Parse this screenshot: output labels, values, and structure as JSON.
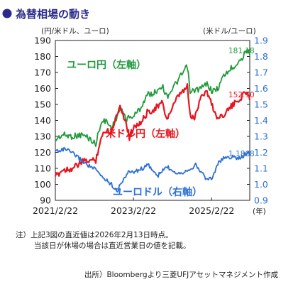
{
  "title": "為替相場の動き",
  "colors": {
    "title": "#2a2a8c",
    "eur_jpy": "#1f9a3a",
    "usd_jpy": "#e8141e",
    "eur_usd": "#2b6fd6",
    "axis": "#222222"
  },
  "left_axis_unit": "(円/米ドル、ユーロ)",
  "right_axis_unit": "(米ドル/ユーロ)",
  "x_axis_unit": "(年)",
  "note_line1": "注）上記3図の直近値は2026年2月13日時点。",
  "note_line2": "当該日が休場の場合は直近営業日の値を記載。",
  "source": "出所）Bloombergより三菱UFJアセットマネジメント作成",
  "chart_data": {
    "type": "line",
    "title": "為替相場の動き",
    "x_tick_labels": [
      "2021/2/22",
      "2023/2/22",
      "2025/2/22"
    ],
    "x_range": [
      "2021-02-22",
      "2026-02-13"
    ],
    "left_axis": {
      "unit": "(円/米ドル、ユーロ)",
      "range": [
        90,
        190
      ],
      "ticks": [
        90,
        100,
        110,
        120,
        130,
        140,
        150,
        160,
        170,
        180,
        190
      ]
    },
    "right_axis": {
      "unit": "(米ドル/ユーロ)",
      "range": [
        0.9,
        1.9
      ],
      "ticks": [
        "0.9",
        "1.0",
        "1.1",
        "1.2",
        "1.3",
        "1.4",
        "1.5",
        "1.6",
        "1.7",
        "1.8",
        "1.9"
      ]
    },
    "grid": false,
    "series": [
      {
        "name": "ユーロ円（左軸）",
        "axis": "left",
        "last_value_label": "181.18",
        "x": [
          "2021-02-22",
          "2021-05-01",
          "2021-08-01",
          "2021-11-01",
          "2022-01-01",
          "2022-03-07",
          "2022-04-20",
          "2022-06-10",
          "2022-08-01",
          "2022-10-20",
          "2022-12-20",
          "2023-03-01",
          "2023-05-01",
          "2023-07-01",
          "2023-09-01",
          "2023-11-15",
          "2024-01-01",
          "2024-04-15",
          "2024-07-10",
          "2024-08-05",
          "2024-09-15",
          "2024-11-15",
          "2025-01-10",
          "2025-03-01",
          "2025-04-20",
          "2025-06-15",
          "2025-08-15",
          "2025-10-20",
          "2025-12-15",
          "2026-01-20",
          "2026-02-13"
        ],
        "values": [
          128,
          131,
          130,
          131,
          129,
          125,
          138,
          140,
          135,
          147,
          141,
          143,
          148,
          156,
          157,
          162,
          155,
          165,
          174,
          157,
          159,
          160,
          163,
          158,
          160,
          168,
          172,
          176,
          180,
          185,
          181.18
        ]
      },
      {
        "name": "米ドル円（左軸）",
        "axis": "left",
        "last_value_label": "152.70",
        "x": [
          "2021-02-22",
          "2021-05-01",
          "2021-08-01",
          "2021-11-01",
          "2022-01-01",
          "2022-03-07",
          "2022-04-20",
          "2022-06-10",
          "2022-08-01",
          "2022-10-20",
          "2022-12-20",
          "2023-01-15",
          "2023-03-01",
          "2023-05-01",
          "2023-07-01",
          "2023-09-01",
          "2023-11-15",
          "2024-01-01",
          "2024-04-15",
          "2024-07-10",
          "2024-08-05",
          "2024-09-15",
          "2024-11-15",
          "2025-01-10",
          "2025-03-01",
          "2025-04-20",
          "2025-06-15",
          "2025-08-15",
          "2025-10-20",
          "2025-12-15",
          "2026-01-20",
          "2026-02-13"
        ],
        "values": [
          105,
          109,
          110,
          114,
          115,
          115,
          128,
          134,
          133,
          150,
          137,
          129,
          137,
          138,
          145,
          147,
          151,
          141,
          155,
          161,
          143,
          141,
          156,
          158,
          149,
          141,
          144,
          148,
          152,
          156,
          158,
          152.7
        ]
      },
      {
        "name": "ユーロドル（右軸）",
        "axis": "right",
        "last_value_label": "1.1868",
        "x": [
          "2021-02-22",
          "2021-06-01",
          "2021-09-01",
          "2021-12-01",
          "2022-03-07",
          "2022-05-01",
          "2022-07-15",
          "2022-09-27",
          "2022-11-15",
          "2023-01-15",
          "2023-03-15",
          "2023-07-15",
          "2023-10-03",
          "2023-12-28",
          "2024-04-15",
          "2024-06-15",
          "2024-09-25",
          "2025-01-13",
          "2025-03-01",
          "2025-04-20",
          "2025-07-01",
          "2025-09-15",
          "2025-11-15",
          "2026-01-20",
          "2026-02-13"
        ],
        "values": [
          1.21,
          1.22,
          1.18,
          1.13,
          1.09,
          1.05,
          1.01,
          0.96,
          1.03,
          1.08,
          1.08,
          1.12,
          1.05,
          1.11,
          1.07,
          1.08,
          1.12,
          1.03,
          1.04,
          1.13,
          1.17,
          1.17,
          1.16,
          1.2,
          1.1868
        ]
      }
    ]
  }
}
